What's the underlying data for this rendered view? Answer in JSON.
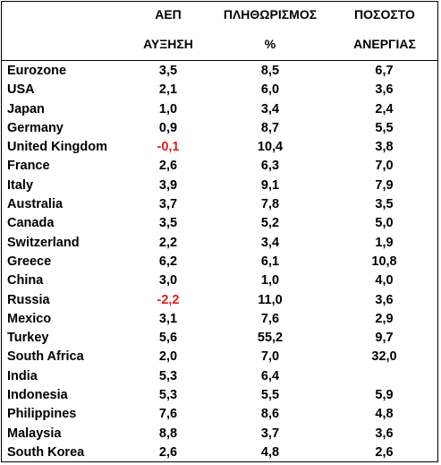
{
  "headers": {
    "gdp_line1": "ΑΕΠ",
    "gdp_line2": "ΑΥΞΗΣΗ",
    "inflation_line1": "ΠΛΗΘΩΡΙΣΜΟΣ",
    "inflation_line2": "%",
    "unemployment_line1": "ΠΟΣΟΣΤΟ",
    "unemployment_line2": "ΑΝΕΡΓΙΑΣ"
  },
  "colors": {
    "negative": "#e31c1c",
    "text": "#000000"
  },
  "rows": [
    {
      "country": "Eurozone",
      "gdp": "3,5",
      "inflation": "8,5",
      "unemployment": "6,7"
    },
    {
      "country": "USA",
      "gdp": "2,1",
      "inflation": "6,0",
      "unemployment": "3,6"
    },
    {
      "country": "Japan",
      "gdp": "1,0",
      "inflation": "3,4",
      "unemployment": "2,4"
    },
    {
      "country": "Germany",
      "gdp": "0,9",
      "inflation": "8,7",
      "unemployment": "5,5"
    },
    {
      "country": "United Kingdom",
      "gdp": "-0,1",
      "inflation": "10,4",
      "unemployment": "3,8"
    },
    {
      "country": "France",
      "gdp": "2,6",
      "inflation": "6,3",
      "unemployment": "7,0"
    },
    {
      "country": "Italy",
      "gdp": "3,9",
      "inflation": "9,1",
      "unemployment": "7,9"
    },
    {
      "country": "Australia",
      "gdp": "3,7",
      "inflation": "7,8",
      "unemployment": "3,5"
    },
    {
      "country": "Canada",
      "gdp": "3,5",
      "inflation": "5,2",
      "unemployment": "5,0"
    },
    {
      "country": "Switzerland",
      "gdp": "2,2",
      "inflation": "3,4",
      "unemployment": "1,9"
    },
    {
      "country": "Greece",
      "gdp": "6,2",
      "inflation": "6,1",
      "unemployment": "10,8"
    },
    {
      "country": "China",
      "gdp": "3,0",
      "inflation": "1,0",
      "unemployment": "4,0"
    },
    {
      "country": "Russia",
      "gdp": "-2,2",
      "inflation": "11,0",
      "unemployment": "3,6"
    },
    {
      "country": "Mexico",
      "gdp": "3,1",
      "inflation": "7,6",
      "unemployment": "2,9"
    },
    {
      "country": "Turkey",
      "gdp": "5,6",
      "inflation": "55,2",
      "unemployment": "9,7"
    },
    {
      "country": "South Africa",
      "gdp": "2,0",
      "inflation": "7,0",
      "unemployment": "32,0"
    },
    {
      "country": "India",
      "gdp": "5,3",
      "inflation": "6,4",
      "unemployment": ""
    },
    {
      "country": "Indonesia",
      "gdp": "5,3",
      "inflation": "5,5",
      "unemployment": "5,9"
    },
    {
      "country": "Philippines",
      "gdp": "7,6",
      "inflation": "8,6",
      "unemployment": "4,8"
    },
    {
      "country": "Malaysia",
      "gdp": "8,8",
      "inflation": "3,7",
      "unemployment": "3,6"
    },
    {
      "country": "South Korea",
      "gdp": "2,6",
      "inflation": "4,8",
      "unemployment": "2,6"
    }
  ]
}
